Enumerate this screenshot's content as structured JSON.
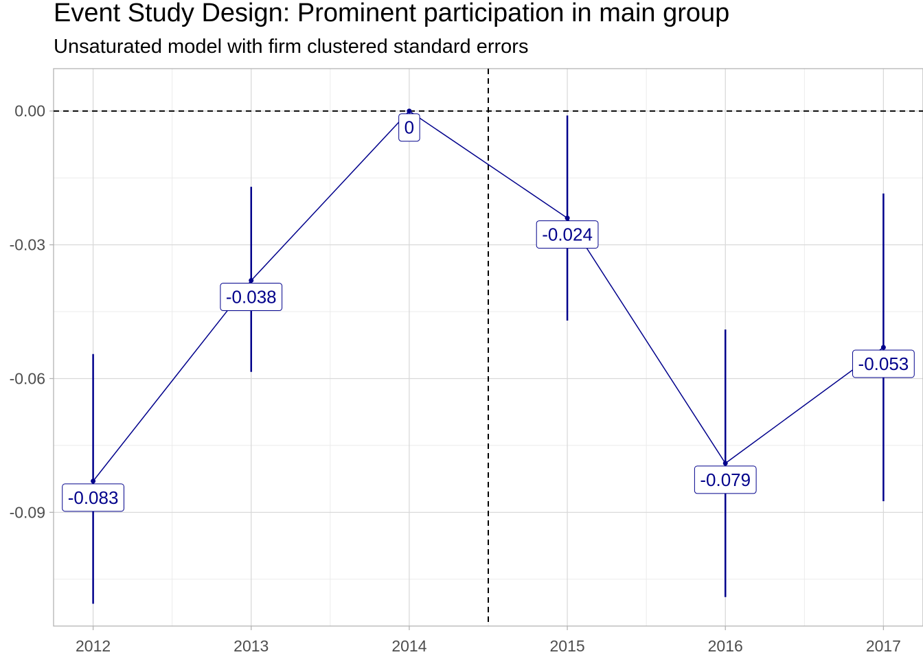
{
  "chart_data": {
    "type": "line",
    "title": "Event Study Design: Prominent participation in main group",
    "subtitle": "Unsaturated model with firm clustered standard errors",
    "xlabel": "",
    "ylabel": "",
    "x": [
      "2012",
      "2013",
      "2014",
      "2015",
      "2016",
      "2017"
    ],
    "values": [
      -0.083,
      -0.038,
      0,
      -0.024,
      -0.079,
      -0.053
    ],
    "value_labels": [
      "-0.083",
      "-0.038",
      "0",
      "-0.024",
      "-0.079",
      "-0.053"
    ],
    "ci_lower": [
      -0.1105,
      -0.0585,
      0,
      -0.047,
      -0.109,
      -0.0875
    ],
    "ci_upper": [
      -0.0545,
      -0.017,
      0,
      -0.001,
      -0.049,
      -0.0185
    ],
    "ylim": [
      -0.1155,
      0.0095
    ],
    "yticks": [
      0.0,
      -0.03,
      -0.06,
      -0.09
    ],
    "ytick_labels": [
      "0.00",
      "-0.03",
      "-0.06",
      "-0.09"
    ],
    "hline": 0,
    "vline": "2014.5",
    "grid": true,
    "color": "#00008b"
  }
}
